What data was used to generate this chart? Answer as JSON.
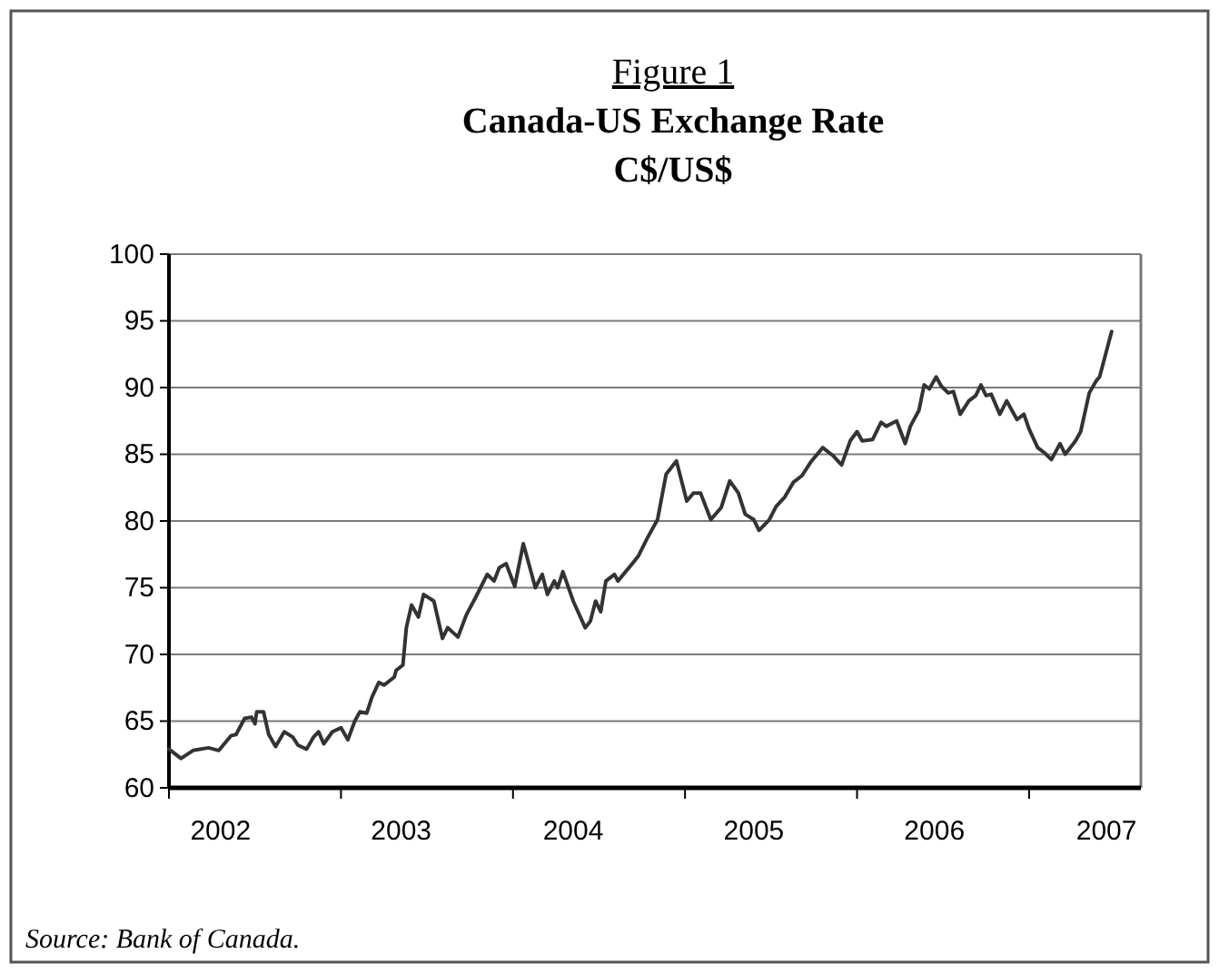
{
  "chart_data": {
    "type": "line",
    "title": "Canada-US Exchange Rate",
    "subtitle": "C$/US$",
    "annotations": [
      "Figure 1",
      "Source: Bank of Canada."
    ],
    "x": [
      2002.0,
      2002.07,
      2002.14,
      2002.23,
      2002.29,
      2002.36,
      2002.39,
      2002.44,
      2002.48,
      2002.5,
      2002.51,
      2002.55,
      2002.58,
      2002.62,
      2002.67,
      2002.72,
      2002.75,
      2002.8,
      2002.84,
      2002.87,
      2002.9,
      2002.95,
      2003.0,
      2003.04,
      2003.08,
      2003.11,
      2003.15,
      2003.18,
      2003.22,
      2003.25,
      2003.31,
      2003.32,
      2003.36,
      2003.38,
      2003.41,
      2003.45,
      2003.48,
      2003.54,
      2003.59,
      2003.62,
      2003.68,
      2003.73,
      2003.78,
      2003.85,
      2003.89,
      2003.92,
      2003.96,
      2004.01,
      2004.06,
      2004.13,
      2004.17,
      2004.2,
      2004.24,
      2004.26,
      2004.29,
      2004.35,
      2004.42,
      2004.45,
      2004.48,
      2004.51,
      2004.54,
      2004.59,
      2004.61,
      2004.7,
      2004.73,
      2004.78,
      2004.84,
      2004.89,
      2004.95,
      2005.01,
      2005.05,
      2005.09,
      2005.15,
      2005.21,
      2005.26,
      2005.31,
      2005.35,
      2005.4,
      2005.43,
      2005.49,
      2005.53,
      2005.58,
      2005.63,
      2005.68,
      2005.73,
      2005.8,
      2005.86,
      2005.91,
      2005.96,
      2006.0,
      2006.03,
      2006.09,
      2006.14,
      2006.17,
      2006.23,
      2006.28,
      2006.31,
      2006.36,
      2006.39,
      2006.42,
      2006.46,
      2006.49,
      2006.53,
      2006.56,
      2006.6,
      2006.65,
      2006.69,
      2006.72,
      2006.75,
      2006.78,
      2006.83,
      2006.87,
      2006.93,
      2006.97,
      2007.0,
      2007.05,
      2007.09,
      2007.13,
      2007.18,
      2007.21,
      2007.27,
      2007.3,
      2007.35,
      2007.39,
      2007.41,
      2007.48
    ],
    "series": [
      {
        "color": "#333333",
        "values": [
          62.9,
          62.2,
          62.8,
          63.0,
          62.8,
          63.9,
          64.0,
          65.2,
          65.3,
          64.8,
          65.7,
          65.7,
          64.0,
          63.1,
          64.2,
          63.8,
          63.2,
          62.9,
          63.8,
          64.2,
          63.3,
          64.2,
          64.5,
          63.6,
          65.0,
          65.7,
          65.6,
          66.8,
          67.9,
          67.7,
          68.3,
          68.8,
          69.2,
          72.0,
          73.7,
          72.8,
          74.5,
          74.0,
          71.2,
          72.0,
          71.3,
          73.0,
          74.2,
          76.0,
          75.5,
          76.5,
          76.8,
          75.1,
          78.3,
          75.0,
          76.0,
          74.5,
          75.5,
          75.0,
          76.2,
          74.0,
          72.0,
          72.5,
          74.0,
          73.2,
          75.5,
          76.0,
          75.5,
          76.9,
          77.4,
          78.7,
          80.1,
          83.5,
          84.5,
          81.5,
          82.1,
          82.1,
          80.1,
          81.0,
          83.0,
          82.1,
          80.5,
          80.1,
          79.3,
          80.1,
          81.1,
          81.8,
          82.9,
          83.4,
          84.4,
          85.5,
          84.9,
          84.2,
          86.0,
          86.7,
          86.0,
          86.1,
          87.4,
          87.1,
          87.5,
          85.8,
          87.1,
          88.3,
          90.2,
          89.9,
          90.8,
          90.1,
          89.6,
          89.7,
          88.0,
          89.0,
          89.4,
          90.2,
          89.4,
          89.5,
          88.0,
          89.0,
          87.6,
          88.0,
          86.9,
          85.5,
          85.1,
          84.6,
          85.8,
          85.0,
          86.0,
          86.7,
          89.6,
          90.5,
          90.8,
          94.2
        ]
      }
    ],
    "xlim": [
      2002,
      2007.65
    ],
    "xticks": [
      {
        "value": 2002.3,
        "label": "2002"
      },
      {
        "value": 2003,
        "label": null
      },
      {
        "value": 2003.35,
        "label": "2003"
      },
      {
        "value": 2004,
        "label": null
      },
      {
        "value": 2004.35,
        "label": "2004"
      },
      {
        "value": 2005,
        "label": null
      },
      {
        "value": 2005.4,
        "label": "2005"
      },
      {
        "value": 2006,
        "label": null
      },
      {
        "value": 2006.45,
        "label": "2006"
      },
      {
        "value": 2007,
        "label": null
      },
      {
        "value": 2007.45,
        "label": "2007"
      }
    ],
    "ylim": [
      60,
      100
    ],
    "yticks": [
      60,
      65,
      70,
      75,
      80,
      85,
      90,
      95,
      100
    ],
    "grid": "y",
    "marker": "none",
    "line_style": "solid"
  }
}
